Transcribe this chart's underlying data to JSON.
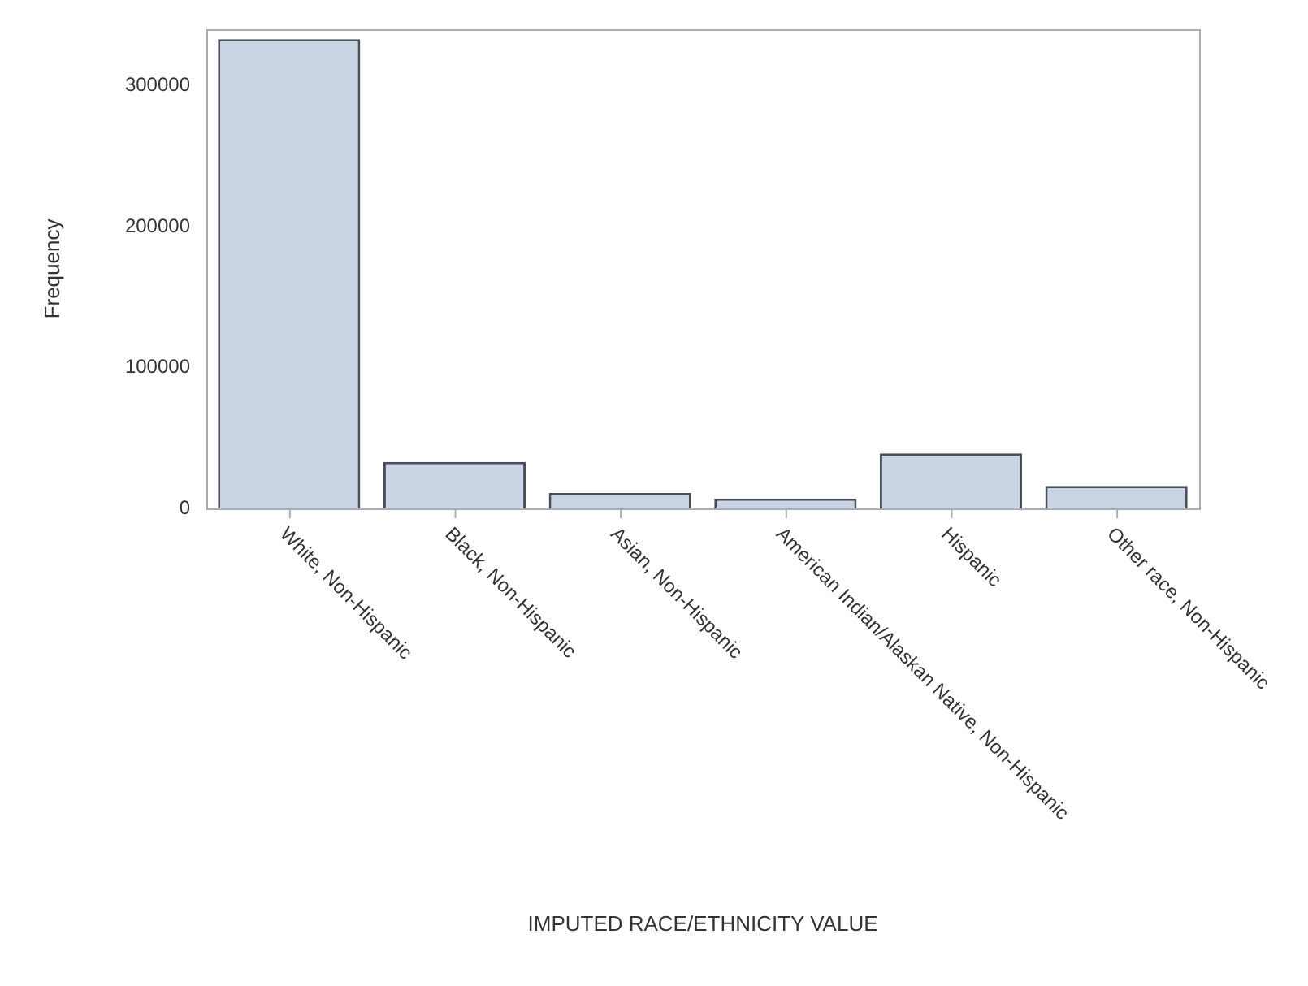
{
  "chart_data": {
    "type": "bar",
    "xlabel": "IMPUTED RACE/ETHNICITY VALUE",
    "ylabel": "Frequency",
    "categories": [
      "White, Non-Hispanic",
      "Black, Non-Hispanic",
      "Asian, Non-Hispanic",
      "American Indian/Alaskan Native, Non-Hispanic",
      "Hispanic",
      "Other race, Non-Hispanic"
    ],
    "values": [
      333000,
      33000,
      11000,
      7000,
      39000,
      16000
    ],
    "color": "#c9d5e5",
    "ylim": [
      0,
      340000
    ],
    "yticks": [
      0,
      100000,
      200000,
      300000
    ],
    "grid": false,
    "legend": false
  }
}
